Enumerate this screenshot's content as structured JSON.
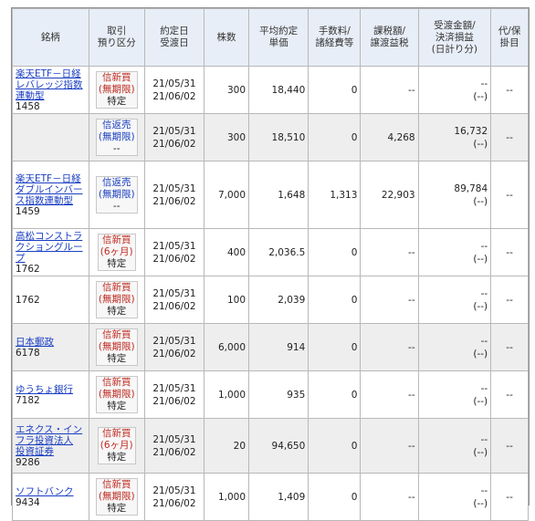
{
  "headers": {
    "name": "銘柄",
    "kind": [
      "取引",
      "預り区分"
    ],
    "dates": [
      "約定日",
      "受渡日"
    ],
    "qty": "株数",
    "price": [
      "平均約定",
      "単価"
    ],
    "fee": [
      "手数料/",
      "諸経費等"
    ],
    "tax": [
      "課税額/",
      "譲渡益税"
    ],
    "settle": [
      "受渡金額/",
      "決済損益",
      "(日計り分)"
    ],
    "proxy": [
      "代/保",
      "掛目"
    ]
  },
  "rows": [
    {
      "name": "楽天ETF－日経レバレッジ指数連動型",
      "code": "1458",
      "kind": [
        "信新買",
        "(無期限)",
        "特定"
      ],
      "kind_colors": [
        "red",
        "red",
        "black"
      ],
      "trade_date": "21/05/31",
      "delivery_date": "21/06/02",
      "qty": "300",
      "price": "18,440",
      "fee": "0",
      "tax": "--",
      "settle": "--",
      "settle_sub": "(--)",
      "proxy": "--",
      "shade": "white",
      "name_lines": 3
    },
    {
      "name": "",
      "code": "",
      "kind": [
        "信返売",
        "(無期限)",
        "--"
      ],
      "kind_colors": [
        "blue",
        "blue",
        "black"
      ],
      "trade_date": "21/05/31",
      "delivery_date": "21/06/02",
      "qty": "300",
      "price": "18,510",
      "fee": "0",
      "tax": "4,268",
      "settle": "16,732",
      "settle_sub": "(--)",
      "proxy": "--",
      "shade": "gray",
      "name_lines": 0
    },
    {
      "name": "楽天ETF－日経ダブルインバース指数連動型",
      "code": "1459",
      "kind": [
        "信返売",
        "(無期限)",
        "--"
      ],
      "kind_colors": [
        "blue",
        "blue",
        "black"
      ],
      "trade_date": "21/05/31",
      "delivery_date": "21/06/02",
      "qty": "7,000",
      "price": "1,648",
      "fee": "1,313",
      "tax": "22,903",
      "settle": "89,784",
      "settle_sub": "(--)",
      "proxy": "--",
      "shade": "white",
      "name_lines": 4
    },
    {
      "name": "高松コンストラクショングループ",
      "code": "1762",
      "kind": [
        "信新買",
        "(6ヶ月)",
        "特定"
      ],
      "kind_colors": [
        "red",
        "red",
        "black"
      ],
      "trade_date": "21/05/31",
      "delivery_date": "21/06/02",
      "qty": "400",
      "price": "2,036.5",
      "fee": "0",
      "tax": "--",
      "settle": "--",
      "settle_sub": "(--)",
      "proxy": "--",
      "shade": "white",
      "name_lines": 3
    },
    {
      "name": "",
      "code": "1762",
      "kind": [
        "信新買",
        "(無期限)",
        "特定"
      ],
      "kind_colors": [
        "red",
        "red",
        "black"
      ],
      "trade_date": "21/05/31",
      "delivery_date": "21/06/02",
      "qty": "100",
      "price": "2,039",
      "fee": "0",
      "tax": "--",
      "settle": "--",
      "settle_sub": "(--)",
      "proxy": "--",
      "shade": "white",
      "name_lines": 0
    },
    {
      "name": "日本郵政",
      "code": "6178",
      "kind": [
        "信新買",
        "(無期限)",
        "特定"
      ],
      "kind_colors": [
        "red",
        "red",
        "black"
      ],
      "trade_date": "21/05/31",
      "delivery_date": "21/06/02",
      "qty": "6,000",
      "price": "914",
      "fee": "0",
      "tax": "--",
      "settle": "--",
      "settle_sub": "(--)",
      "proxy": "--",
      "shade": "gray",
      "name_lines": 1
    },
    {
      "name": "ゆうちょ銀行",
      "code": "7182",
      "kind": [
        "信新買",
        "(無期限)",
        "特定"
      ],
      "kind_colors": [
        "red",
        "red",
        "black"
      ],
      "trade_date": "21/05/31",
      "delivery_date": "21/06/02",
      "qty": "1,000",
      "price": "935",
      "fee": "0",
      "tax": "--",
      "settle": "--",
      "settle_sub": "(--)",
      "proxy": "--",
      "shade": "white",
      "name_lines": 1
    },
    {
      "name": "エネクス・インフラ投資法人 投資証券",
      "code": "9286",
      "kind": [
        "信新買",
        "(6ヶ月)",
        "特定"
      ],
      "kind_colors": [
        "red",
        "red",
        "black"
      ],
      "trade_date": "21/05/31",
      "delivery_date": "21/06/02",
      "qty": "20",
      "price": "94,650",
      "fee": "0",
      "tax": "--",
      "settle": "--",
      "settle_sub": "(--)",
      "proxy": "--",
      "shade": "gray",
      "name_lines": 3
    },
    {
      "name": "ソフトバンク",
      "code": "9434",
      "kind": [
        "信新買",
        "(無期限)",
        "特定"
      ],
      "kind_colors": [
        "red",
        "red",
        "black"
      ],
      "trade_date": "21/05/31",
      "delivery_date": "21/06/02",
      "qty": "1,000",
      "price": "1,409",
      "fee": "0",
      "tax": "--",
      "settle": "--",
      "settle_sub": "(--)",
      "proxy": "--",
      "shade": "white",
      "name_lines": 1
    }
  ]
}
